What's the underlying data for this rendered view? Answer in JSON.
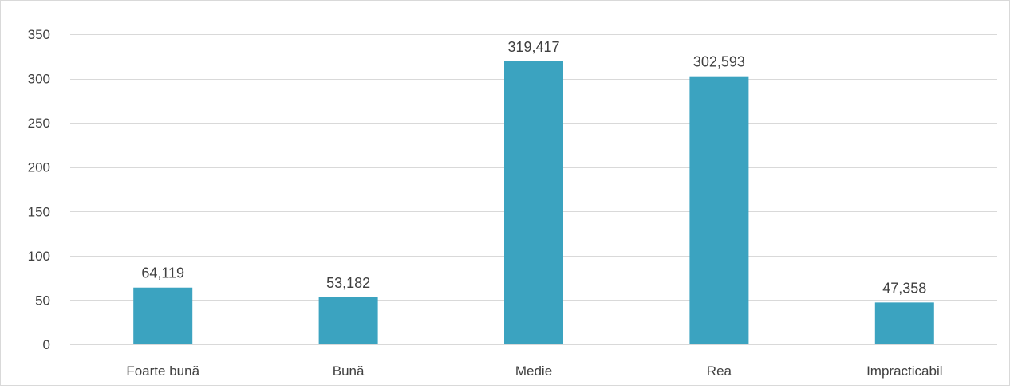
{
  "chart_data": {
    "type": "bar",
    "title": "",
    "xlabel": "",
    "ylabel": "",
    "categories": [
      "Foarte bună",
      "Bună",
      "Medie",
      "Rea",
      "Impracticabil"
    ],
    "values": [
      64.119,
      53.182,
      319.417,
      302.593,
      47.358
    ],
    "data_labels": [
      "64,119",
      "53,182",
      "319,417",
      "302,593",
      "47,358"
    ],
    "y_ticks": [
      0,
      50,
      100,
      150,
      200,
      250,
      300,
      350
    ],
    "ylim": [
      0,
      350
    ],
    "grid": true,
    "legend": "none",
    "bar_color": "#3ba3c0",
    "grid_color": "#d9d9d9",
    "text_color": "#404040"
  }
}
